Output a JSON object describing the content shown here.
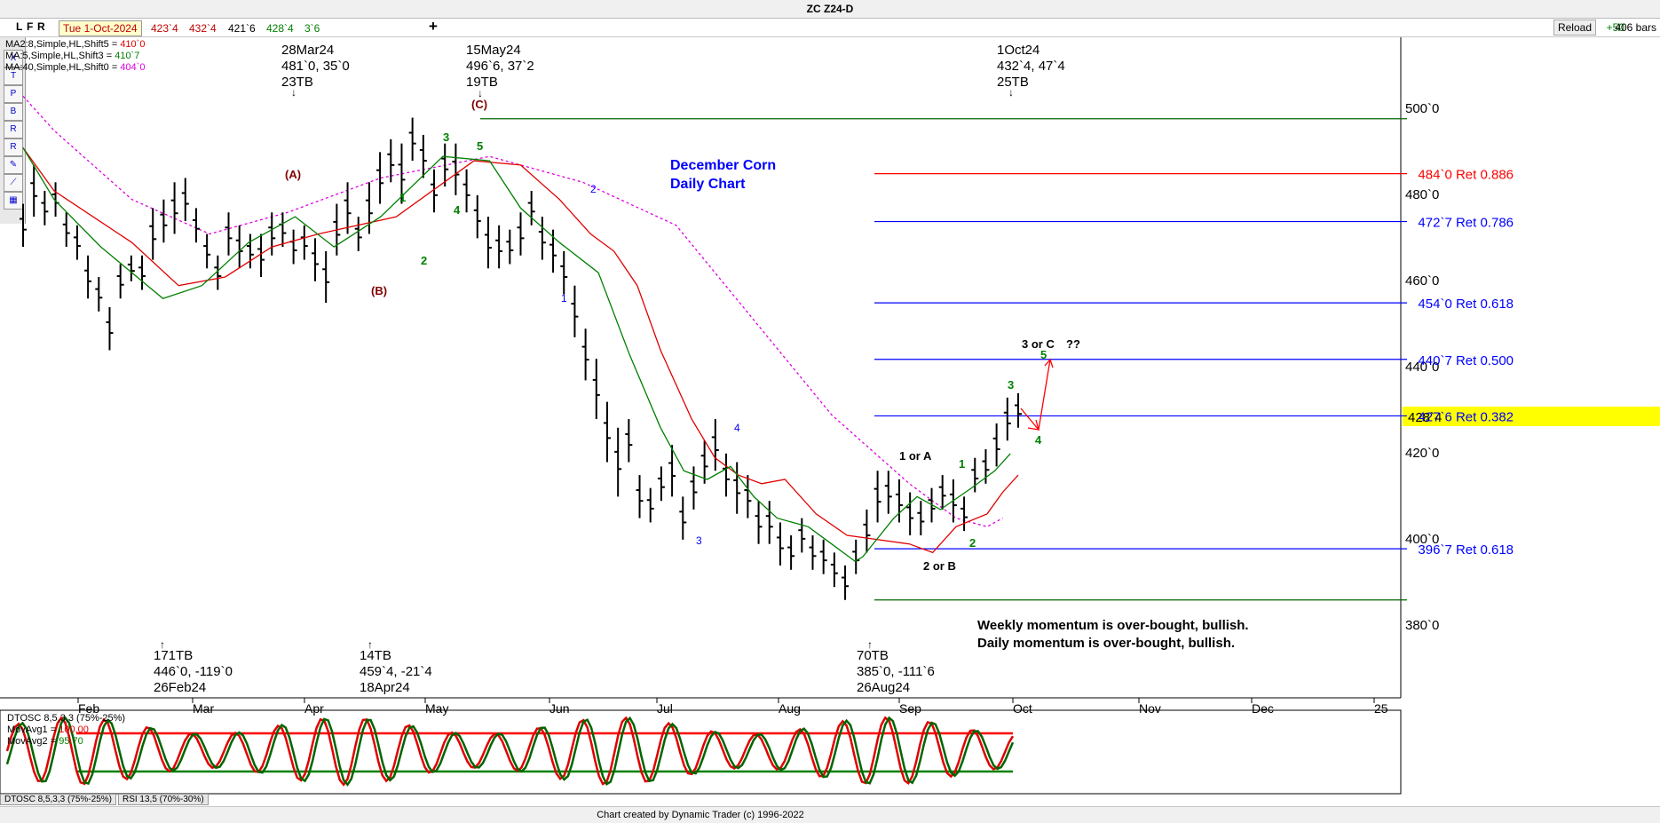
{
  "window": {
    "title": "ZC Z24-D",
    "buttons": [
      "L",
      "F",
      "R"
    ],
    "date": "Tue 1-Oct-2024",
    "quote": [
      {
        "text": "423`4",
        "color": "#c00000"
      },
      {
        "text": "432`4",
        "color": "#c00000"
      },
      {
        "text": "421`6",
        "color": "#000000"
      },
      {
        "text": "428`4",
        "color": "#008000"
      },
      {
        "text": "3`6",
        "color": "#008000"
      }
    ],
    "plus_label": "+",
    "reload_label": "Reload",
    "bars_offset": "+50",
    "bars_count": "406 bars"
  },
  "ma_legend": [
    {
      "text": "MA2:8,Simple,HL,Shift5 = ",
      "value": "410`0",
      "color": "#e00000"
    },
    {
      "text": "MA:5,Simple,HL,Shift3 = ",
      "value": "410`7",
      "color": "#008000"
    },
    {
      "text": "MA:40,Simple,HL,Shift0 = ",
      "value": "404`0",
      "color": "#e000e0"
    }
  ],
  "tools": [
    "X",
    "T",
    "P",
    "B",
    "R",
    "R"
  ],
  "chart_title": {
    "line1": "December Corn",
    "line2": "Daily Chart",
    "color": "#0000ff"
  },
  "chart_data": {
    "type": "ohlc",
    "y_axis_ticks": [
      "380`0",
      "400`0",
      "420`0",
      "440`0",
      "460`0",
      "480`0",
      "500`0"
    ],
    "y_ticks_values": [
      380,
      400,
      420,
      440,
      460,
      480,
      500
    ],
    "ylim": [
      364,
      514
    ],
    "x_months": [
      "Feb",
      "Mar",
      "Apr",
      "May",
      "Jun",
      "Jul",
      "Aug",
      "Sep",
      "Oct",
      "Nov",
      "Dec",
      "25"
    ],
    "last_price": "428`4",
    "last_price_value": 428.5,
    "bars_path": [
      [
        472,
        5
      ],
      [
        480,
        6
      ],
      [
        476,
        4
      ],
      [
        478,
        4
      ],
      [
        471,
        4
      ],
      [
        468,
        4
      ],
      [
        460,
        5
      ],
      [
        456,
        4
      ],
      [
        448,
        5
      ],
      [
        459,
        4
      ],
      [
        462,
        3
      ],
      [
        461,
        4
      ],
      [
        470,
        6
      ],
      [
        473,
        5
      ],
      [
        476,
        6
      ],
      [
        478,
        5
      ],
      [
        472,
        4
      ],
      [
        466,
        4
      ],
      [
        461,
        4
      ],
      [
        470,
        5
      ],
      [
        467,
        5
      ],
      [
        466,
        4
      ],
      [
        465,
        5
      ],
      [
        470,
        5
      ],
      [
        471,
        4
      ],
      [
        467,
        4
      ],
      [
        468,
        4
      ],
      [
        464,
        5
      ],
      [
        460,
        6
      ],
      [
        471,
        6
      ],
      [
        476,
        6
      ],
      [
        470,
        4
      ],
      [
        476,
        6
      ],
      [
        483,
        6
      ],
      [
        487,
        5
      ],
      [
        484,
        7
      ],
      [
        492,
        5
      ],
      [
        488,
        5
      ],
      [
        480,
        5
      ],
      [
        486,
        5
      ],
      [
        485,
        6
      ],
      [
        480,
        5
      ],
      [
        474,
        5
      ],
      [
        468,
        6
      ],
      [
        467,
        5
      ],
      [
        467,
        4
      ],
      [
        470,
        5
      ],
      [
        476,
        4
      ],
      [
        469,
        5
      ],
      [
        466,
        5
      ],
      [
        461,
        5
      ],
      [
        452,
        6
      ],
      [
        442,
        6
      ],
      [
        434,
        7
      ],
      [
        424,
        7
      ],
      [
        417,
        8
      ],
      [
        422,
        5
      ],
      [
        409,
        5
      ],
      [
        407,
        4
      ],
      [
        412,
        4
      ],
      [
        415,
        6
      ],
      [
        404,
        5
      ],
      [
        411,
        5
      ],
      [
        417,
        5
      ],
      [
        421,
        6
      ],
      [
        414,
        5
      ],
      [
        411,
        6
      ],
      [
        409,
        5
      ],
      [
        403,
        5
      ],
      [
        403,
        5
      ],
      [
        398,
        5
      ],
      [
        396,
        4
      ],
      [
        400,
        4
      ],
      [
        396,
        4
      ],
      [
        395,
        4
      ],
      [
        392,
        4
      ],
      [
        389,
        4
      ],
      [
        395,
        4
      ],
      [
        401,
        5
      ],
      [
        409,
        6
      ],
      [
        410,
        5
      ],
      [
        408,
        5
      ],
      [
        405,
        5
      ],
      [
        404,
        4
      ],
      [
        407,
        4
      ],
      [
        410,
        4
      ],
      [
        408,
        5
      ],
      [
        405,
        4
      ],
      [
        414,
        4
      ],
      [
        416,
        4
      ],
      [
        421,
        5
      ],
      [
        427,
        5
      ],
      [
        429,
        4
      ]
    ],
    "ma40_path": [
      [
        502,
        0
      ],
      [
        494,
        20
      ],
      [
        478,
        70
      ],
      [
        470,
        120
      ],
      [
        475,
        170
      ],
      [
        483,
        230
      ],
      [
        488,
        300
      ],
      [
        482,
        360
      ],
      [
        472,
        420
      ],
      [
        450,
        470
      ],
      [
        428,
        520
      ],
      [
        412,
        570
      ],
      [
        404,
        600
      ],
      [
        402,
        620
      ],
      [
        404,
        630
      ]
    ],
    "ma_red_path": [
      [
        490,
        0
      ],
      [
        480,
        20
      ],
      [
        468,
        70
      ],
      [
        458,
        100
      ],
      [
        460,
        130
      ],
      [
        467,
        160
      ],
      [
        470,
        190
      ],
      [
        474,
        240
      ],
      [
        487,
        290
      ],
      [
        486,
        320
      ],
      [
        478,
        345
      ],
      [
        470,
        365
      ],
      [
        466,
        380
      ],
      [
        458,
        395
      ],
      [
        443,
        410
      ],
      [
        427,
        430
      ],
      [
        418,
        445
      ],
      [
        414,
        460
      ],
      [
        412,
        475
      ],
      [
        413,
        490
      ],
      [
        405,
        510
      ],
      [
        400,
        530
      ],
      [
        399,
        550
      ],
      [
        398,
        570
      ],
      [
        396,
        585
      ],
      [
        402,
        600
      ],
      [
        405,
        620
      ],
      [
        410,
        630
      ],
      [
        414,
        640
      ]
    ],
    "ma_green_path": [
      [
        490,
        0
      ],
      [
        478,
        20
      ],
      [
        467,
        50
      ],
      [
        455,
        90
      ],
      [
        458,
        115
      ],
      [
        468,
        145
      ],
      [
        474,
        175
      ],
      [
        467,
        200
      ],
      [
        474,
        230
      ],
      [
        488,
        270
      ],
      [
        487,
        300
      ],
      [
        476,
        320
      ],
      [
        468,
        345
      ],
      [
        461,
        370
      ],
      [
        442,
        390
      ],
      [
        425,
        410
      ],
      [
        415,
        425
      ],
      [
        413,
        440
      ],
      [
        416,
        455
      ],
      [
        409,
        470
      ],
      [
        404,
        485
      ],
      [
        402,
        505
      ],
      [
        398,
        520
      ],
      [
        394,
        535
      ],
      [
        395,
        540
      ],
      [
        404,
        560
      ],
      [
        409,
        575
      ],
      [
        406,
        590
      ],
      [
        411,
        610
      ],
      [
        415,
        625
      ],
      [
        419,
        635
      ]
    ],
    "hlines": [
      {
        "y": 496.75,
        "color": "#006600",
        "label": ""
      },
      {
        "y": 484.0,
        "color": "#ff0000",
        "label": "484`0 Ret 0.886"
      },
      {
        "y": 472.875,
        "color": "#0000ff",
        "label": "472`7 Ret 0.786"
      },
      {
        "y": 454.0,
        "color": "#0000ff",
        "label": "454`0 Ret 0.618"
      },
      {
        "y": 440.875,
        "color": "#0000ff",
        "label": "440`7 Ret 0.500"
      },
      {
        "y": 427.75,
        "color": "#0000ff",
        "label": "427`6 Ret 0.382"
      },
      {
        "y": 396.875,
        "color": "#0000ff",
        "label": "396`7 Ret 0.618"
      },
      {
        "y": 385.0,
        "color": "#006600",
        "label": ""
      }
    ],
    "top_annotations": [
      {
        "lines": [
          "28Mar24",
          "481`0, 35`0",
          "23TB"
        ]
      },
      {
        "lines": [
          "15May24",
          "496`6, 37`2",
          "19TB"
        ]
      },
      {
        "lines": [
          "1Oct24",
          "432`4, 47`4",
          "25TB"
        ]
      }
    ],
    "bottom_annotations": [
      {
        "lines": [
          "171TB",
          "446`0, -119`0",
          "26Feb24"
        ]
      },
      {
        "lines": [
          "14TB",
          "459`4, -21`4",
          "18Apr24"
        ]
      },
      {
        "lines": [
          "70TB",
          "385`0, -111`6",
          "26Aug24"
        ]
      }
    ],
    "wave_labels": [
      {
        "text": "(A)",
        "color": "#800000"
      },
      {
        "text": "(B)",
        "color": "#800000"
      },
      {
        "text": "(C)",
        "color": "#800000"
      },
      {
        "text": "1",
        "color": "#008000"
      },
      {
        "text": "2",
        "color": "#008000"
      },
      {
        "text": "3",
        "color": "#008000"
      },
      {
        "text": "4",
        "color": "#008000"
      },
      {
        "text": "5",
        "color": "#008000"
      },
      {
        "text": "1",
        "color": "#0000ff"
      },
      {
        "text": "2",
        "color": "#0000ff"
      },
      {
        "text": "3",
        "color": "#0000ff"
      },
      {
        "text": "4",
        "color": "#0000ff"
      },
      {
        "text": "1 or A",
        "color": "#000000"
      },
      {
        "text": "2 or B",
        "color": "#000000"
      },
      {
        "text": "1",
        "color": "#008000"
      },
      {
        "text": "2",
        "color": "#008000"
      },
      {
        "text": "3",
        "color": "#008000"
      },
      {
        "text": "4",
        "color": "#008000"
      },
      {
        "text": "5",
        "color": "#008000"
      },
      {
        "text": "3 or C",
        "color": "#000000"
      },
      {
        "text": "??",
        "color": "#000000"
      }
    ],
    "comments": [
      "Weekly momentum is over-bought, bullish.",
      "Daily momentum is over-bought, bullish."
    ]
  },
  "oscillator": {
    "legend": [
      {
        "text": "DTOSC 8,5,3,3 (75%-25%)",
        "color": "#000000"
      },
      {
        "text": "MovAvg1 = ",
        "value": "100.00",
        "color": "#e00000"
      },
      {
        "text": "MovAvg2 = ",
        "value": "95.70",
        "color": "#008000"
      }
    ],
    "upper_level": 75,
    "lower_level": 25,
    "tabs": [
      "DTOSC 8,5,3,3 (75%-25%)",
      "RSI 13,5 (70%-30%)"
    ]
  },
  "footer": {
    "credit": "Chart created by Dynamic Trader  (c) 1996-2022"
  }
}
